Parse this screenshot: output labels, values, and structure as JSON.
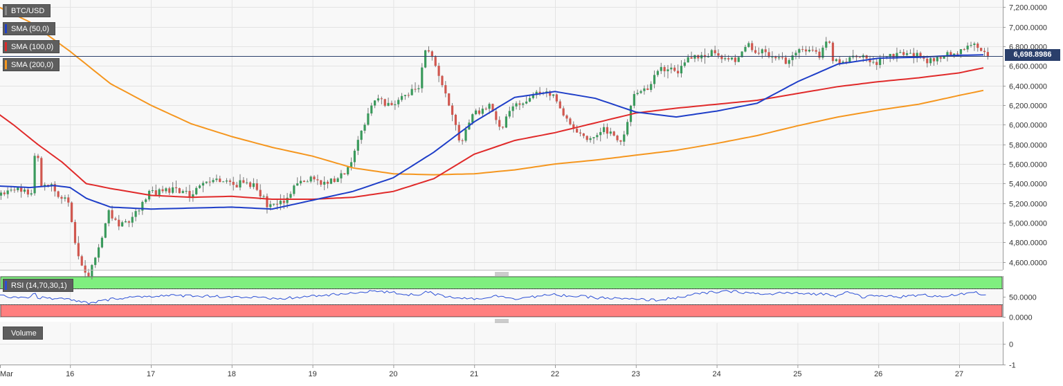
{
  "chart_data": [
    {
      "type": "candlestick",
      "symbol": "BTC/USD",
      "x_tick_labels": [
        "Mar",
        "16",
        "17",
        "18",
        "19",
        "20",
        "21",
        "22",
        "23",
        "24",
        "25",
        "26",
        "27"
      ],
      "y_ticks": [
        4600,
        4800,
        5000,
        5200,
        5400,
        5600,
        5800,
        6000,
        6200,
        6400,
        6600,
        6800,
        7000,
        7200
      ],
      "y_tick_labels": [
        "4,600.0000",
        "4,800.0000",
        "5,000.0000",
        "5,200.0000",
        "5,400.0000",
        "5,600.0000",
        "5,800.0000",
        "6,000.0000",
        "6,200.0000",
        "6,400.0000",
        "6,600.0000",
        "6,800.0000",
        "7,000.0000",
        "7,200.0000"
      ],
      "ylim": [
        4520,
        7260
      ],
      "last_price": 6698.8986,
      "last_price_label": "6,698.8986",
      "grid": true,
      "candle_colors": {
        "up": "#3a9a5c",
        "down": "#d0574f",
        "wick": "#777777"
      },
      "path_days": [
        0,
        0.3,
        0.55,
        0.6,
        0.65,
        0.8,
        1.0,
        1.1,
        1.25,
        1.4,
        1.5,
        1.6,
        1.8,
        2.0,
        2.2,
        2.5,
        2.8,
        3.0,
        3.3,
        3.5,
        3.7,
        3.8,
        4.0,
        4.2,
        4.4,
        4.5,
        4.6,
        4.8,
        5.0,
        5.15,
        5.35,
        5.4,
        5.5,
        5.65,
        5.8,
        5.85,
        6.0,
        6.2,
        6.35,
        6.5,
        6.7,
        6.85,
        7.0,
        7.2,
        7.4,
        7.6,
        7.85,
        8.0,
        8.2,
        8.3,
        8.45,
        8.55,
        8.6,
        8.8,
        9.0,
        9.2,
        9.3,
        9.4,
        9.5,
        9.7,
        9.9,
        10.1,
        10.3,
        10.4,
        10.45,
        10.6,
        10.8,
        11.0,
        11.2,
        11.4,
        11.6,
        11.8,
        12.0,
        12.2,
        12.35
      ],
      "path_prices": [
        5250,
        5350,
        5300,
        5900,
        5400,
        5350,
        5200,
        4700,
        4450,
        4800,
        5150,
        5000,
        5050,
        5300,
        5350,
        5280,
        5450,
        5400,
        5380,
        5150,
        5250,
        5380,
        5450,
        5400,
        5500,
        5650,
        5900,
        6250,
        6200,
        6300,
        6400,
        6800,
        6700,
        6350,
        6000,
        5800,
        6100,
        6200,
        5950,
        6200,
        6250,
        6350,
        6300,
        6000,
        5850,
        5950,
        5820,
        6300,
        6400,
        6550,
        6600,
        6550,
        6650,
        6700,
        6750,
        6650,
        6700,
        6800,
        6750,
        6700,
        6650,
        6800,
        6700,
        6900,
        6650,
        6650,
        6700,
        6650,
        6700,
        6750,
        6650,
        6700,
        6750,
        6850,
        6700
      ],
      "sma_colors": {
        "50": "#1e3ec8",
        "100": "#e02a2a",
        "200": "#f5961e"
      },
      "sma_50": {
        "days": [
          0,
          0.5,
          0.8,
          1.0,
          1.2,
          1.5,
          2.0,
          2.5,
          3.0,
          3.5,
          4.0,
          4.5,
          5.0,
          5.5,
          6.0,
          6.5,
          7.0,
          7.5,
          8.0,
          8.5,
          9.0,
          9.5,
          10.0,
          10.5,
          11.0,
          11.5,
          12.0,
          12.35
        ],
        "values": [
          5380,
          5360,
          5380,
          5360,
          5250,
          5160,
          5140,
          5150,
          5160,
          5140,
          5230,
          5320,
          5460,
          5720,
          6030,
          6280,
          6340,
          6270,
          6130,
          6080,
          6140,
          6220,
          6440,
          6620,
          6680,
          6690,
          6710,
          6715
        ]
      },
      "sma_100": {
        "days": [
          0,
          0.3,
          0.6,
          0.9,
          1.2,
          1.5,
          2.0,
          2.5,
          3.0,
          3.5,
          4.0,
          4.5,
          5.0,
          5.5,
          6.0,
          6.5,
          7.0,
          7.5,
          8.0,
          8.5,
          9.0,
          9.5,
          10.0,
          10.5,
          11.0,
          11.5,
          12.0,
          12.35
        ],
        "values": [
          6180,
          6000,
          5800,
          5620,
          5400,
          5350,
          5280,
          5260,
          5270,
          5240,
          5240,
          5260,
          5320,
          5450,
          5700,
          5840,
          5920,
          6020,
          6120,
          6170,
          6210,
          6250,
          6320,
          6390,
          6440,
          6480,
          6530,
          6590
        ]
      },
      "sma_200": {
        "days": [
          0,
          0.5,
          1.0,
          1.5,
          2.0,
          2.5,
          3.0,
          3.5,
          4.0,
          4.5,
          5.0,
          5.5,
          6.0,
          6.5,
          7.0,
          7.5,
          8.0,
          8.5,
          9.0,
          9.5,
          10.0,
          10.5,
          11.0,
          11.5,
          12.0,
          12.35
        ],
        "values": [
          7250,
          7050,
          6750,
          6420,
          6200,
          6010,
          5880,
          5770,
          5680,
          5560,
          5500,
          5490,
          5500,
          5540,
          5600,
          5640,
          5690,
          5740,
          5810,
          5890,
          5990,
          6080,
          6150,
          6210,
          6300,
          6360
        ]
      },
      "legend": [
        "BTC/USD",
        "SMA (50,0)",
        "SMA (100,0)",
        "SMA (200,0)"
      ]
    },
    {
      "type": "line",
      "indicator": "RSI (14,70,30,1)",
      "y_ticks": [
        50,
        0
      ],
      "y_tick_labels": [
        "50.0000",
        "0.0000"
      ],
      "ylim": [
        0,
        100
      ],
      "overbought": 70,
      "oversold": 30,
      "zone_colors": {
        "overbought": "#7fef7f",
        "oversold": "#ff7f7f"
      },
      "line_color": "#2b4fd6",
      "rsi_days": [
        0,
        0.3,
        0.5,
        0.55,
        0.6,
        0.8,
        1.0,
        1.1,
        1.25,
        1.4,
        1.6,
        2.0,
        2.5,
        3.0,
        3.3,
        3.5,
        3.8,
        4.0,
        4.5,
        4.7,
        5.0,
        5.2,
        5.35,
        5.4,
        5.5,
        5.7,
        6.0,
        6.3,
        6.5,
        7.0,
        7.2,
        7.5,
        7.8,
        8.0,
        8.3,
        8.5,
        8.8,
        9.0,
        9.2,
        9.4,
        9.6,
        9.8,
        10.0,
        10.3,
        10.5,
        10.6,
        10.8,
        11.0,
        11.3,
        11.5,
        11.8,
        12.0,
        12.2,
        12.35
      ],
      "rsi_values": [
        52,
        50,
        48,
        62,
        48,
        46,
        43,
        38,
        34,
        40,
        47,
        52,
        53,
        50,
        48,
        44,
        48,
        52,
        58,
        65,
        60,
        55,
        56,
        66,
        56,
        50,
        45,
        52,
        46,
        55,
        52,
        48,
        45,
        43,
        42,
        48,
        58,
        62,
        63,
        60,
        55,
        60,
        58,
        57,
        52,
        66,
        50,
        52,
        50,
        54,
        52,
        55,
        60,
        52
      ]
    },
    {
      "type": "bar",
      "indicator": "Volume",
      "y_ticks": [
        0,
        -1
      ],
      "y_tick_labels": [
        "0",
        "-1"
      ]
    }
  ]
}
